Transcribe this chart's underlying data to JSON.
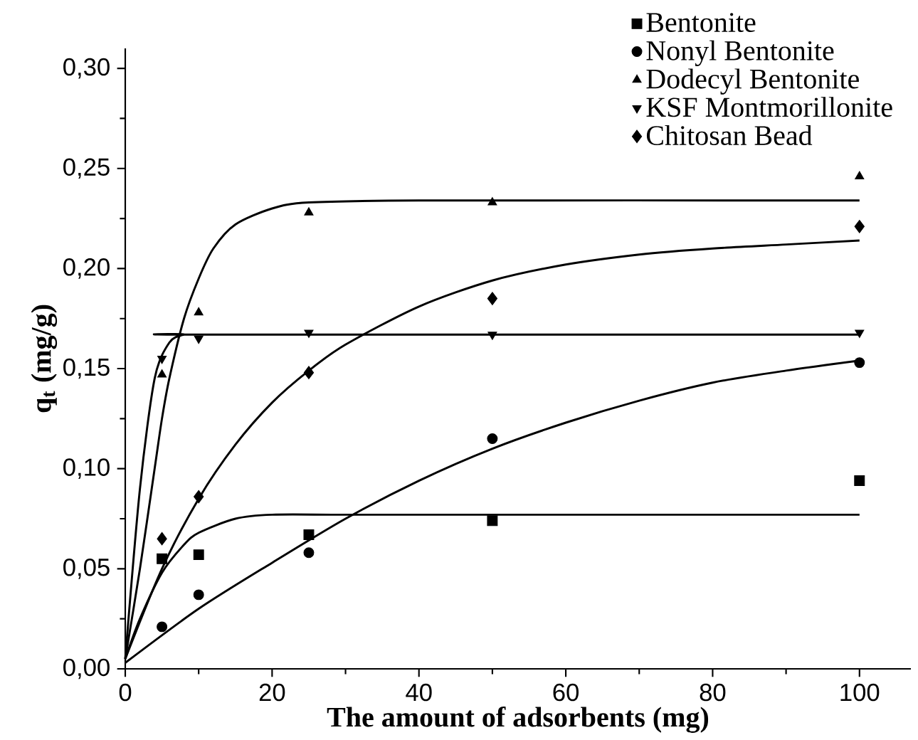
{
  "chart_data": {
    "type": "scatter",
    "xlabel": "The amount of adsorbents (mg)",
    "ylabel": "**q$_{t}$ (mg/g)**",
    "xlim": [
      0,
      107
    ],
    "ylim": [
      0,
      0.31
    ],
    "xticks": [
      0,
      20,
      40,
      60,
      80,
      100
    ],
    "yticks": [
      {
        "value": 0,
        "label": "0,00"
      },
      {
        "value": 0.05,
        "label": "0,05"
      },
      {
        "value": 0.1,
        "label": "0,10"
      },
      {
        "value": 0.15,
        "label": "0,15"
      },
      {
        "value": 0.2,
        "label": "0,20"
      },
      {
        "value": 0.25,
        "label": "0,25"
      },
      {
        "value": 0.3,
        "label": "0,30"
      }
    ],
    "grid": false,
    "legend": "top right",
    "series": [
      {
        "name": "Bentonite",
        "color": "#000000",
        "marker": "square",
        "x": [
          5,
          10,
          25,
          50,
          100
        ],
        "values": [
          0.055,
          0.057,
          0.067,
          0.074,
          0.094
        ]
      },
      {
        "name": "Nonyl Bentonite",
        "color": "#000000",
        "marker": "circle",
        "x": [
          5,
          10,
          25,
          50,
          100
        ],
        "values": [
          0.021,
          0.037,
          0.058,
          0.115,
          0.153
        ]
      },
      {
        "name": "Dodecyl Bentonite",
        "color": "#000000",
        "marker": "triangle",
        "x": [
          5,
          10,
          25,
          50,
          100
        ],
        "values": [
          0.147,
          0.178,
          0.228,
          0.233,
          0.246
        ]
      },
      {
        "name": "KSF Montmorillonite",
        "color": "#000000",
        "marker": "triangle-down",
        "x": [
          5,
          10,
          25,
          50,
          100
        ],
        "values": [
          0.155,
          0.165,
          0.168,
          0.167,
          0.168
        ]
      },
      {
        "name": "Chitosan Bead",
        "color": "#000000",
        "marker": "diamond",
        "x": [
          5,
          10,
          25,
          50,
          100
        ],
        "values": [
          0.065,
          0.086,
          0.148,
          0.185,
          0.221
        ]
      },
      {
        "type": "line",
        "color": "#000000",
        "marker": "none",
        "x": [
          0,
          2,
          5,
          8,
          10,
          15,
          20,
          30,
          50,
          100
        ],
        "values": [
          0.005,
          0.025,
          0.048,
          0.062,
          0.068,
          0.075,
          0.077,
          0.077,
          0.077,
          0.077
        ]
      },
      {
        "type": "line",
        "color": "#000000",
        "marker": "none",
        "x": [
          0,
          10,
          20,
          30,
          40,
          50,
          60,
          70,
          80,
          90,
          100
        ],
        "values": [
          0.003,
          0.03,
          0.053,
          0.075,
          0.094,
          0.11,
          0.123,
          0.134,
          0.143,
          0.149,
          0.154
        ]
      },
      {
        "type": "line",
        "color": "#000000",
        "marker": "none",
        "x": [
          0,
          2,
          4,
          5,
          6,
          8,
          10,
          12,
          15,
          20,
          25,
          40,
          100
        ],
        "values": [
          0.005,
          0.05,
          0.1,
          0.125,
          0.145,
          0.175,
          0.195,
          0.21,
          0.222,
          0.23,
          0.233,
          0.234,
          0.234
        ]
      },
      {
        "type": "line",
        "color": "#000000",
        "marker": "none",
        "x": [
          0,
          2,
          4,
          6,
          8,
          10,
          100
        ],
        "values": [
          0.005,
          0.09,
          0.145,
          0.163,
          0.167,
          0.167,
          0.167
        ]
      },
      {
        "type": "line",
        "color": "#000000",
        "marker": "none",
        "x": [
          0,
          5,
          10,
          15,
          20,
          25,
          30,
          40,
          50,
          60,
          70,
          80,
          90,
          100
        ],
        "values": [
          0.005,
          0.05,
          0.085,
          0.112,
          0.133,
          0.149,
          0.162,
          0.181,
          0.194,
          0.202,
          0.207,
          0.21,
          0.212,
          0.214
        ]
      }
    ]
  }
}
